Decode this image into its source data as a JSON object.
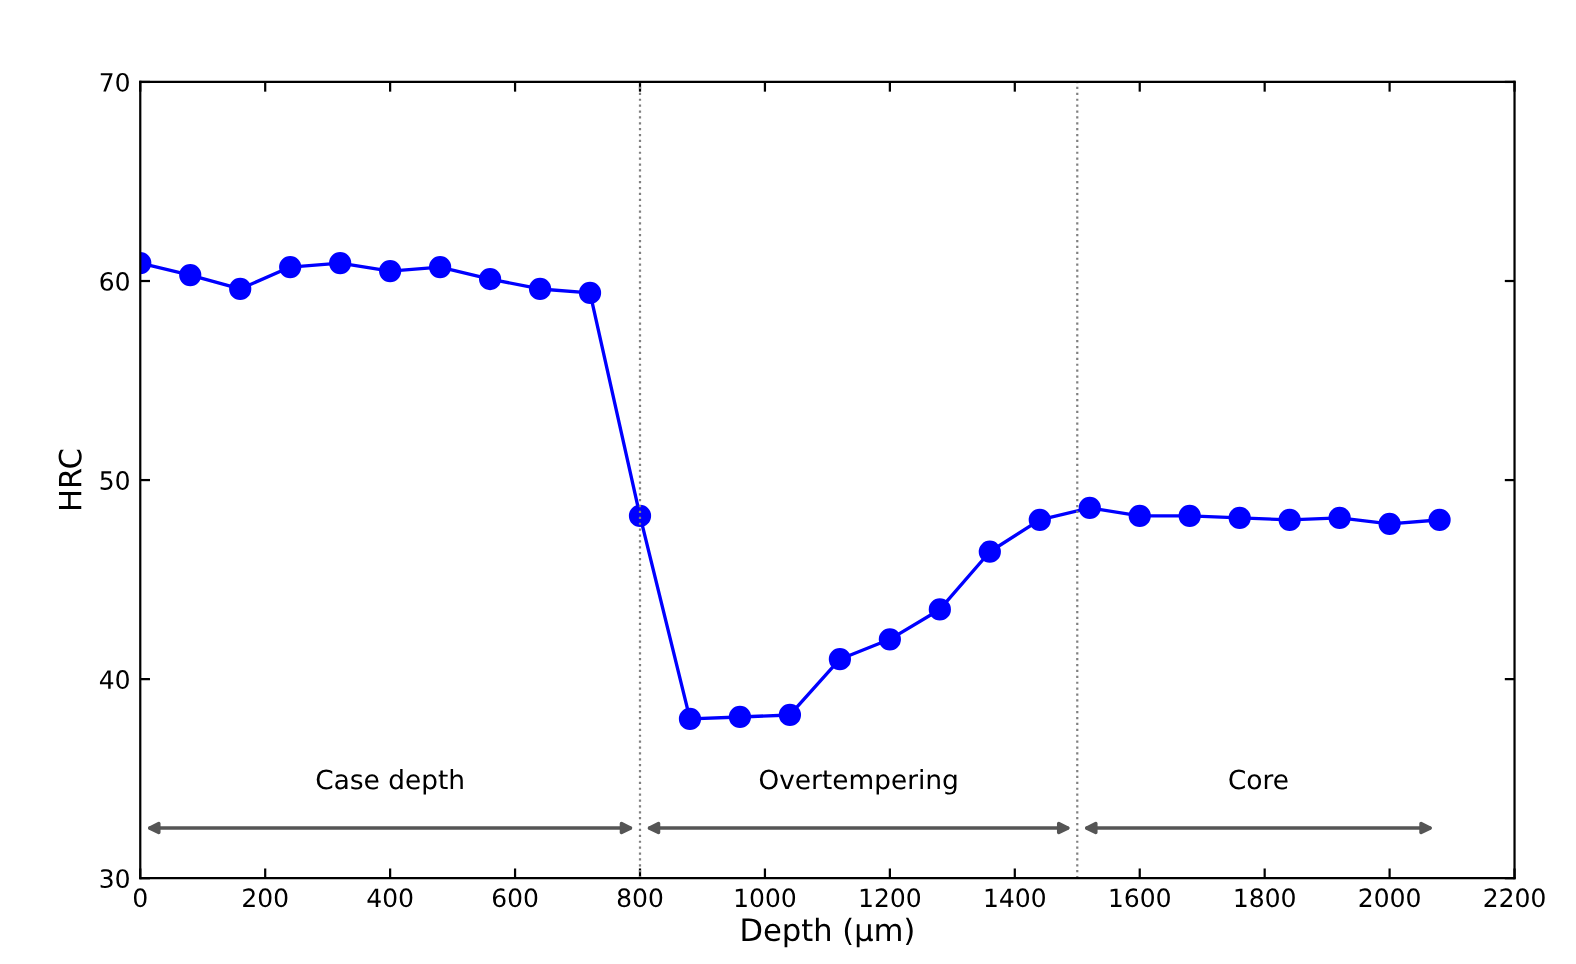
{
  "chart_data": {
    "type": "line",
    "xlabel": "Depth (μm)",
    "ylabel": "HRC",
    "x": [
      0,
      80,
      160,
      240,
      320,
      400,
      480,
      560,
      640,
      720,
      800,
      880,
      960,
      1040,
      1120,
      1200,
      1280,
      1360,
      1440,
      1520,
      1600,
      1680,
      1760,
      1840,
      1920,
      2000,
      2080
    ],
    "series": [
      {
        "color": "#0000ff",
        "values": [
          60.9,
          60.3,
          59.6,
          60.7,
          60.9,
          60.5,
          60.7,
          60.1,
          59.6,
          59.4,
          48.2,
          38.0,
          38.1,
          38.2,
          41.0,
          42.0,
          43.5,
          46.4,
          48.0,
          48.6,
          48.2,
          48.2,
          48.1,
          48.0,
          48.1,
          47.8,
          48.0
        ]
      }
    ],
    "marker": "circle",
    "line_style": "solid",
    "xlim": [
      0,
      2200
    ],
    "xticks": [
      0,
      200,
      400,
      600,
      800,
      1000,
      1200,
      1400,
      1600,
      1800,
      2000,
      2200
    ],
    "ylim": [
      30,
      70
    ],
    "yticks": [
      30,
      40,
      50,
      60,
      70
    ],
    "ref_lines": [
      {
        "axis": "x",
        "value": 800,
        "color": "#808080",
        "line_style": "dotted"
      },
      {
        "axis": "x",
        "value": 1500,
        "color": "#808080",
        "line_style": "dotted"
      }
    ],
    "annotations": [
      "Case depth",
      "Overtempering",
      "Core"
    ],
    "grid": false,
    "legend": false
  }
}
